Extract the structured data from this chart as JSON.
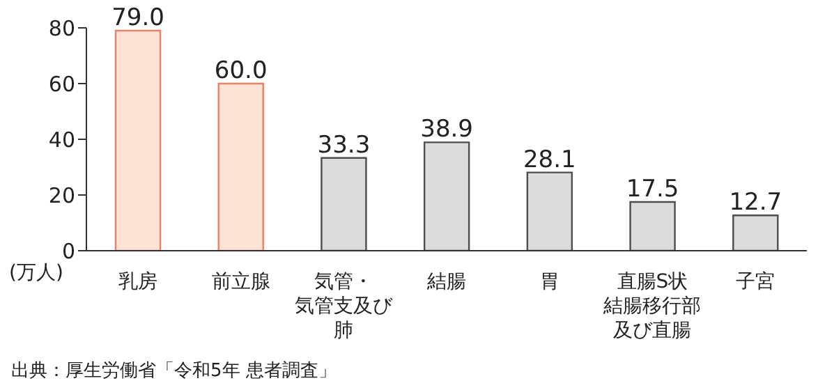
{
  "chart_data": {
    "type": "bar",
    "categories": [
      "乳房",
      "前立腺",
      "気管・気管支及び肺",
      "結腸",
      "胃",
      "直腸S状結腸移行部及び直腸",
      "子宮"
    ],
    "values": [
      79.0,
      60.0,
      33.3,
      38.9,
      28.1,
      17.5,
      12.7
    ],
    "colors": [
      "#fde2d6",
      "#fde2d6",
      "#dcdcdc",
      "#dcdcdc",
      "#dcdcdc",
      "#dcdcdc",
      "#dcdcdc"
    ],
    "value_labels": [
      "79.0",
      "60.0",
      "33.3",
      "38.9",
      "28.1",
      "17.5",
      "12.7"
    ],
    "ylabel": "(万人)",
    "ylim": [
      0,
      80
    ],
    "yticks": [
      0,
      20,
      40,
      60,
      80
    ],
    "grid": false,
    "legend": false,
    "annotations": [
      "出典：厚生労働省「令和5年 患者調査」"
    ]
  }
}
